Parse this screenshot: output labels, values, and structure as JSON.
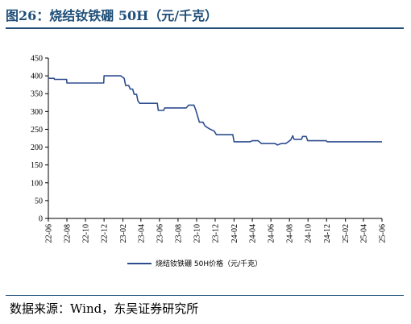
{
  "title": "图26：烧结钕铁硼 50H（元/千克）",
  "source": "数据来源：Wind，东吴证券研究所",
  "colors": {
    "line": "#2e4d8e",
    "title": "#1f4e79"
  },
  "chart_data": {
    "type": "line",
    "title": "",
    "xlabel": "",
    "ylabel": "",
    "ylim": [
      0,
      450
    ],
    "ytick_labels": [
      "0",
      "50",
      "100",
      "150",
      "200",
      "250",
      "300",
      "350",
      "400",
      "450"
    ],
    "x_range": [
      "2022-06",
      "2025-06"
    ],
    "xtick_labels": [
      "22-06",
      "22-08",
      "22-10",
      "22-12",
      "23-02",
      "23-04",
      "23-06",
      "23-08",
      "23-10",
      "23-12",
      "24-02",
      "24-04",
      "24-06",
      "24-08",
      "24-10",
      "24-12",
      "25-02",
      "25-04",
      "25-06"
    ],
    "grid": false,
    "legend_position": "bottom-center",
    "series": [
      {
        "name": "烧结钕铁硼 50H价格（元/千克）",
        "points": [
          [
            "2022-06-01",
            393
          ],
          [
            "2022-06-20",
            393
          ],
          [
            "2022-06-21",
            390
          ],
          [
            "2022-07-31",
            390
          ],
          [
            "2022-08-01",
            380
          ],
          [
            "2022-11-30",
            380
          ],
          [
            "2022-12-01",
            400
          ],
          [
            "2023-01-25",
            400
          ],
          [
            "2023-02-05",
            393
          ],
          [
            "2023-02-10",
            373
          ],
          [
            "2023-02-20",
            373
          ],
          [
            "2023-02-25",
            363
          ],
          [
            "2023-03-05",
            363
          ],
          [
            "2023-03-10",
            348
          ],
          [
            "2023-03-18",
            348
          ],
          [
            "2023-03-22",
            330
          ],
          [
            "2023-03-28",
            323
          ],
          [
            "2023-05-25",
            323
          ],
          [
            "2023-05-28",
            303
          ],
          [
            "2023-06-15",
            303
          ],
          [
            "2023-06-18",
            310
          ],
          [
            "2023-08-28",
            310
          ],
          [
            "2023-09-05",
            318
          ],
          [
            "2023-09-22",
            318
          ],
          [
            "2023-09-28",
            305
          ],
          [
            "2023-10-05",
            285
          ],
          [
            "2023-10-10",
            270
          ],
          [
            "2023-10-22",
            270
          ],
          [
            "2023-10-28",
            260
          ],
          [
            "2023-11-05",
            255
          ],
          [
            "2023-11-15",
            250
          ],
          [
            "2023-11-28",
            245
          ],
          [
            "2023-12-05",
            235
          ],
          [
            "2024-01-28",
            235
          ],
          [
            "2024-02-01",
            215
          ],
          [
            "2024-03-25",
            215
          ],
          [
            "2024-04-01",
            218
          ],
          [
            "2024-04-20",
            218
          ],
          [
            "2024-05-01",
            210
          ],
          [
            "2024-06-15",
            210
          ],
          [
            "2024-06-22",
            206
          ],
          [
            "2024-07-05",
            210
          ],
          [
            "2024-07-20",
            210
          ],
          [
            "2024-08-05",
            220
          ],
          [
            "2024-08-12",
            232
          ],
          [
            "2024-08-16",
            222
          ],
          [
            "2024-09-10",
            222
          ],
          [
            "2024-09-13",
            230
          ],
          [
            "2024-09-25",
            230
          ],
          [
            "2024-09-30",
            218
          ],
          [
            "2024-11-30",
            218
          ],
          [
            "2024-12-03",
            215
          ],
          [
            "2025-06-01",
            215
          ]
        ]
      }
    ]
  }
}
